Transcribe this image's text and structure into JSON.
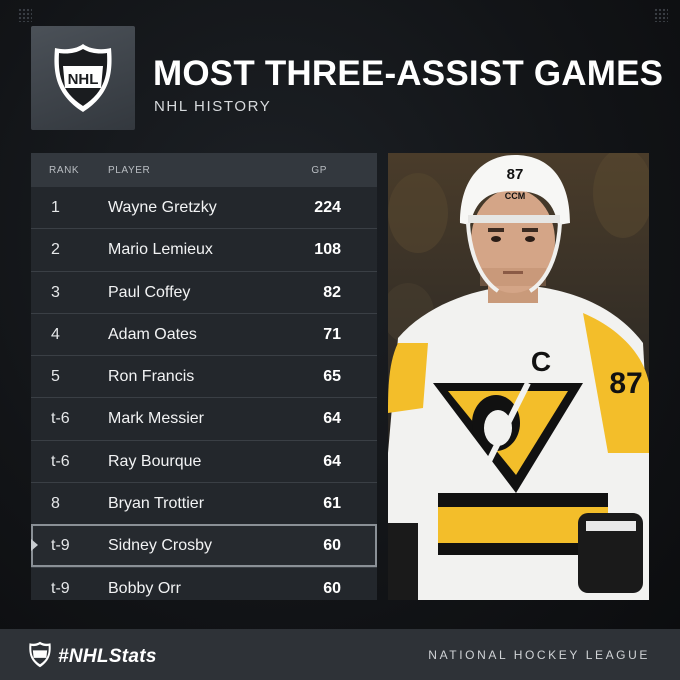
{
  "header": {
    "title": "MOST THREE-ASSIST GAMES",
    "subtitle": "NHL HISTORY",
    "logo_text": "NHL"
  },
  "table": {
    "columns": {
      "rank": "RANK",
      "player": "PLAYER",
      "gp": "GP"
    },
    "rows": [
      {
        "rank": "1",
        "player": "Wayne Gretzky",
        "gp": "224"
      },
      {
        "rank": "2",
        "player": "Mario Lemieux",
        "gp": "108"
      },
      {
        "rank": "3",
        "player": "Paul Coffey",
        "gp": "82"
      },
      {
        "rank": "4",
        "player": "Adam Oates",
        "gp": "71"
      },
      {
        "rank": "5",
        "player": "Ron Francis",
        "gp": "65"
      },
      {
        "rank": "t-6",
        "player": "Mark Messier",
        "gp": "64"
      },
      {
        "rank": "t-6",
        "player": "Ray Bourque",
        "gp": "64"
      },
      {
        "rank": "8",
        "player": "Bryan Trottier",
        "gp": "61"
      },
      {
        "rank": "t-9",
        "player": "Sidney Crosby",
        "gp": "60"
      },
      {
        "rank": "t-9",
        "player": "Bobby Orr",
        "gp": "60"
      }
    ],
    "highlighted_row": 8
  },
  "photo": {
    "jersey_number": "87",
    "captain_letter": "C",
    "helmet_brand": "CCM"
  },
  "footer": {
    "hashtag": "#NHLStats",
    "league": "NATIONAL HOCKEY LEAGUE"
  },
  "colors": {
    "background": "#0f1114",
    "table_bg": "#23272c",
    "header_bg": "#33383e",
    "footer_bg": "#2e3237",
    "penguins_gold": "#f3be2a",
    "penguins_black": "#111111"
  }
}
